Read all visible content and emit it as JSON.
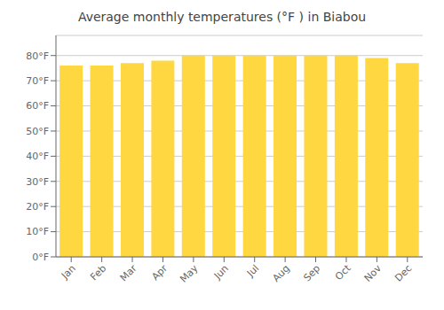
{
  "chart_data": {
    "type": "bar",
    "title": "Average monthly temperatures (°F ) in Biabou",
    "categories": [
      "Jan",
      "Feb",
      "Mar",
      "Apr",
      "May",
      "Jun",
      "Jul",
      "Aug",
      "Sep",
      "Oct",
      "Nov",
      "Dec"
    ],
    "values": [
      76,
      76,
      77,
      78,
      80,
      80,
      80,
      80,
      80,
      80,
      79,
      77
    ],
    "color": "#FFD740",
    "ylim": [
      0,
      88
    ],
    "yticks": [
      {
        "value": 0,
        "label": "0°F"
      },
      {
        "value": 10,
        "label": "10°F"
      },
      {
        "value": 20,
        "label": "20°F"
      },
      {
        "value": 30,
        "label": "30°F"
      },
      {
        "value": 40,
        "label": "40°F"
      },
      {
        "value": 50,
        "label": "50°F"
      },
      {
        "value": 60,
        "label": "60°F"
      },
      {
        "value": 70,
        "label": "70°F"
      },
      {
        "value": 80,
        "label": "80°F"
      }
    ],
    "grid": true
  }
}
